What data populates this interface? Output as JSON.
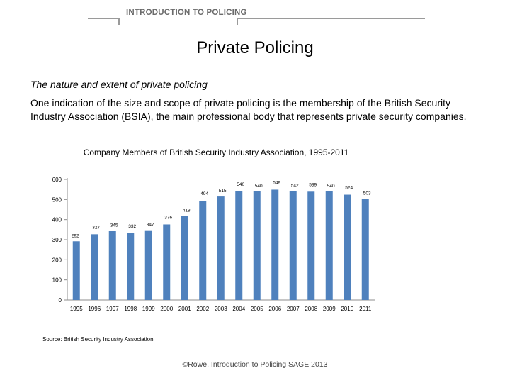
{
  "header": {
    "label": "INTRODUCTION TO POLICING"
  },
  "slide": {
    "title": "Private Policing",
    "subtitle": "The nature and extent of private policing",
    "paragraph": "One indication of the size and scope of private policing is the membership of the British Security Industry Association (BSIA), the main professional body that represents private security companies."
  },
  "chart_data": {
    "type": "bar",
    "title": "Company Members of British Security Industry Association, 1995-2011",
    "categories": [
      "1995",
      "1996",
      "1997",
      "1998",
      "1999",
      "2000",
      "2001",
      "2002",
      "2003",
      "2004",
      "2005",
      "2006",
      "2007",
      "2008",
      "2009",
      "2010",
      "2011"
    ],
    "values": [
      292,
      327,
      345,
      332,
      347,
      376,
      418,
      494,
      515,
      540,
      540,
      549,
      542,
      539,
      540,
      524,
      503
    ],
    "ylim": [
      0,
      600
    ],
    "yticks": [
      0,
      100,
      200,
      300,
      400,
      500,
      600
    ],
    "xlabel": "",
    "ylabel": "",
    "bar_color": "#4f81bd",
    "grid": false
  },
  "source": "Source: British Security Industry Association",
  "footer": "©Rowe, Introduction to Policing SAGE 2013"
}
